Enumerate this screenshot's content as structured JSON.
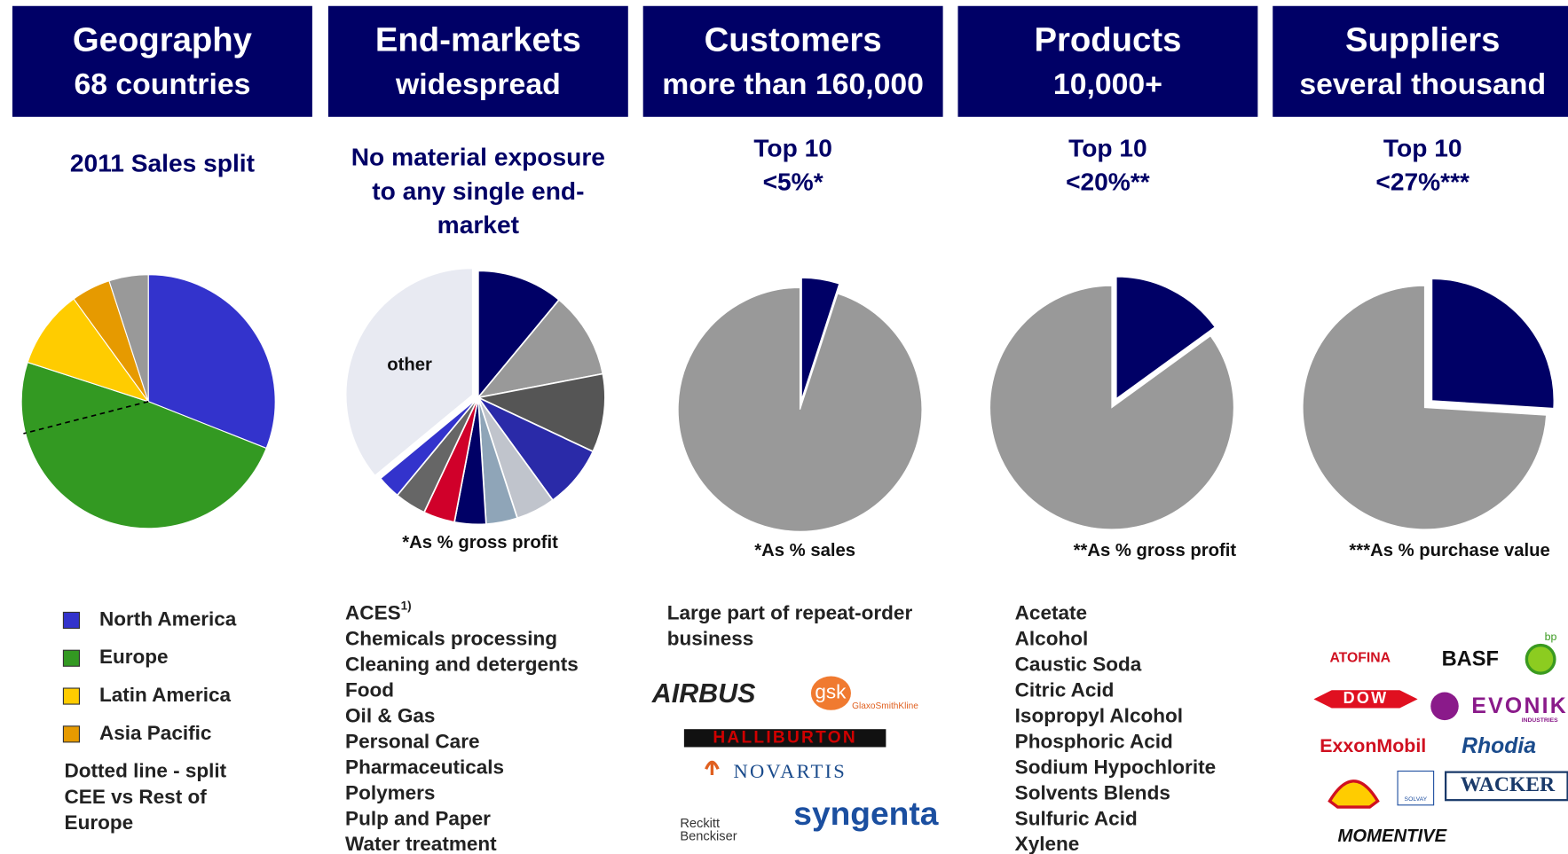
{
  "chart_data": [
    {
      "type": "pie",
      "header": "Geography",
      "header_sub": "68 countries",
      "title": [
        "2011 Sales split"
      ],
      "categories": [
        "North America",
        "Europe",
        "Latin America",
        "Asia Pacific",
        null
      ],
      "values": [
        31,
        49,
        10,
        5,
        5
      ],
      "colors": [
        "#3333cc",
        "#339922",
        "#ffcc00",
        "#e69a00",
        "#999999"
      ],
      "legend": true,
      "annotation": {
        "text": [
          "Dotted line - split",
          "CEE vs Rest of",
          "Europe"
        ],
        "value": 9
      }
    },
    {
      "type": "pie",
      "header": "End-markets",
      "header_sub": "widespread",
      "title": [
        "No material exposure",
        "to any single end-",
        "market"
      ],
      "categories": [
        null,
        null,
        null,
        null,
        null,
        null,
        null,
        null,
        null,
        null,
        "other"
      ],
      "values": [
        11,
        11,
        10,
        8,
        5,
        4,
        4,
        4,
        4,
        3,
        36
      ],
      "colors": [
        "#000066",
        "#999999",
        "#555555",
        "#2a2aa8",
        "#c0c4cc",
        "#8fa5b8",
        "#000066",
        "#d0002a",
        "#666666",
        "#3333cc",
        "#e8eaf2"
      ],
      "note": "*As % gross profit",
      "items": [
        {
          "text": "ACES",
          "sup": "1)"
        },
        {
          "text": "Chemicals processing"
        },
        {
          "text": "Cleaning and detergents"
        },
        {
          "text": "Food"
        },
        {
          "text": "Oil & Gas"
        },
        {
          "text": "Personal Care"
        },
        {
          "text": "Pharmaceuticals"
        },
        {
          "text": "Polymers"
        },
        {
          "text": "Pulp and Paper"
        },
        {
          "text": "Water treatment"
        }
      ]
    },
    {
      "type": "pie",
      "header": "Customers",
      "header_sub": "more than 160,000",
      "title": [
        "Top 10",
        "<5%*"
      ],
      "categories": [
        null,
        null
      ],
      "values": [
        5,
        95
      ],
      "colors": [
        "#000066",
        "#999999"
      ],
      "note": "*As % sales",
      "items": [
        {
          "text": "Large part of repeat-order"
        },
        {
          "text": "business"
        }
      ],
      "logos": [
        "AIRBUS",
        "gsk",
        "GlaxoSmithKline",
        "HALLIBURTON",
        "NOVARTIS",
        "Reckitt",
        "Benckiser",
        "syngenta"
      ]
    },
    {
      "type": "pie",
      "header": "Products",
      "header_sub": "10,000+",
      "title": [
        "Top 10",
        "<20%**"
      ],
      "categories": [
        null,
        null
      ],
      "values": [
        15,
        85
      ],
      "colors": [
        "#000066",
        "#999999"
      ],
      "note": "**As % gross profit",
      "items": [
        {
          "text": "Acetate"
        },
        {
          "text": "Alcohol"
        },
        {
          "text": "Caustic Soda"
        },
        {
          "text": "Citric Acid"
        },
        {
          "text": "Isopropyl Alcohol"
        },
        {
          "text": "Phosphoric Acid"
        },
        {
          "text": "Sodium Hypochlorite"
        },
        {
          "text": "Solvents Blends"
        },
        {
          "text": "Sulfuric Acid"
        },
        {
          "text": "Xylene"
        }
      ]
    },
    {
      "type": "pie",
      "header": "Suppliers",
      "header_sub": "several thousand",
      "title": [
        "Top 10",
        "<27%***"
      ],
      "categories": [
        null,
        null
      ],
      "values": [
        26,
        74
      ],
      "colors": [
        "#000066",
        "#999999"
      ],
      "note": "***As % purchase value",
      "logos": [
        "ATOFINA",
        "BASF",
        "bp",
        "DOW",
        "EVONIK",
        "INDUSTRIES",
        "ExxonMobil",
        "Rhodia",
        "SOLVAY",
        "WACKER",
        "MOMENTIVE"
      ]
    }
  ]
}
